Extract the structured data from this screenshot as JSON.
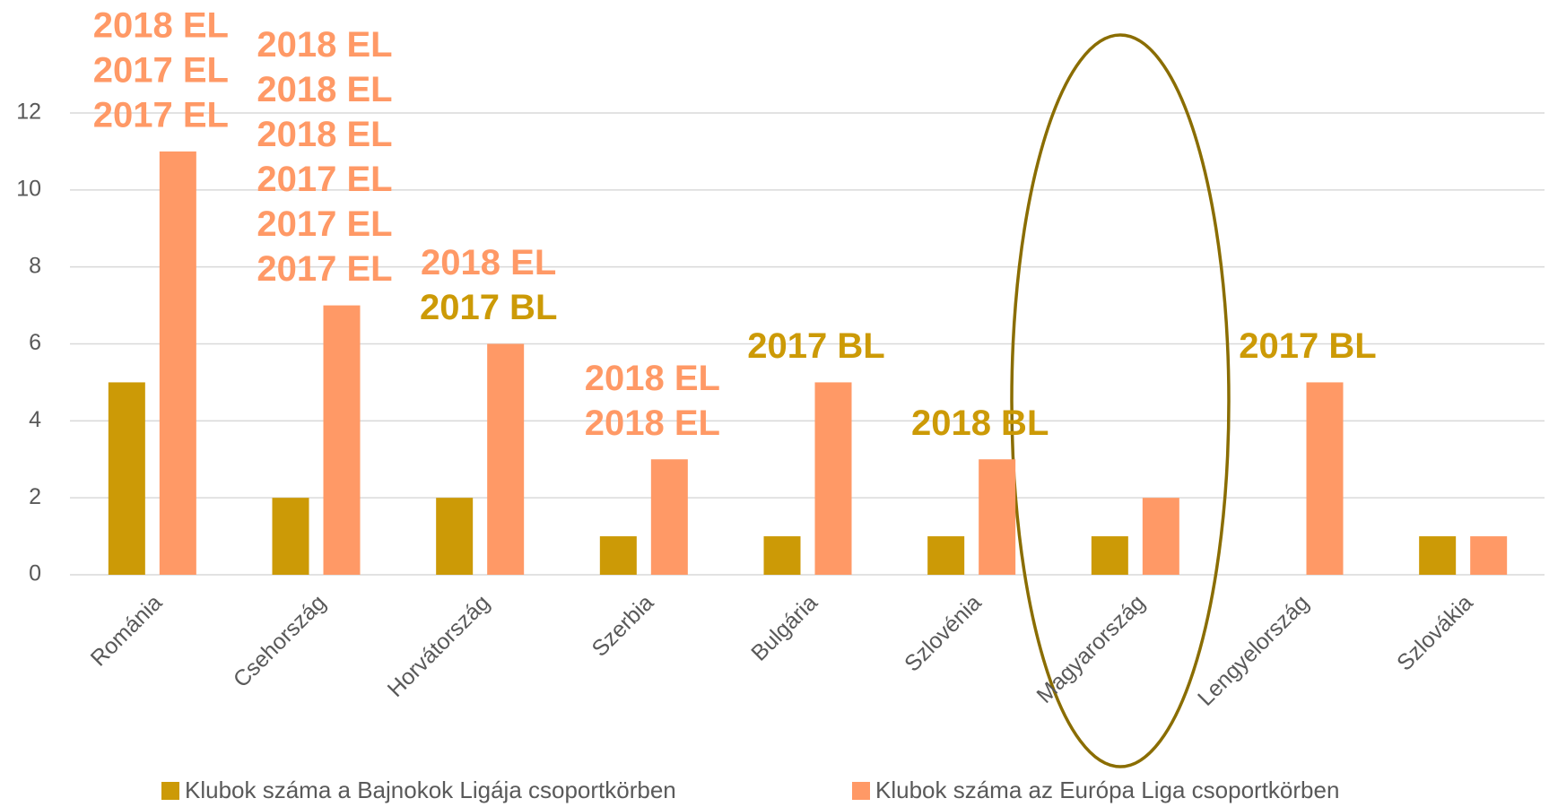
{
  "chart_data": {
    "type": "bar",
    "categories": [
      "Románia",
      "Csehország",
      "Horvátország",
      "Szerbia",
      "Bulgária",
      "Szlovénia",
      "Magyarország",
      "Lengyelország",
      "Szlovákia"
    ],
    "series": [
      {
        "name": "Klubok száma a Bajnokok Ligája csoportkörben",
        "color": "#cc9a06",
        "values": [
          5,
          2,
          2,
          1,
          1,
          1,
          1,
          0,
          1
        ]
      },
      {
        "name": "Klubok száma az Európa Liga csoportkörben",
        "color": "#ff9966",
        "values": [
          11,
          7,
          6,
          3,
          5,
          3,
          2,
          5,
          1
        ]
      }
    ],
    "annotations": [
      [
        {
          "text": "2017 EL",
          "color": "#ff9966"
        },
        {
          "text": "2017 EL",
          "color": "#ff9966"
        },
        {
          "text": "2018 EL",
          "color": "#ff9966"
        }
      ],
      [
        {
          "text": "2017 EL",
          "color": "#ff9966"
        },
        {
          "text": "2017 EL",
          "color": "#ff9966"
        },
        {
          "text": "2017 EL",
          "color": "#ff9966"
        },
        {
          "text": "2018 EL",
          "color": "#ff9966"
        },
        {
          "text": "2018 EL",
          "color": "#ff9966"
        },
        {
          "text": "2018 EL",
          "color": "#ff9966"
        }
      ],
      [
        {
          "text": "2017 BL",
          "color": "#cc9a06"
        },
        {
          "text": "2018 EL",
          "color": "#ff9966"
        }
      ],
      [
        {
          "text": "2018 EL",
          "color": "#ff9966"
        },
        {
          "text": "2018 EL",
          "color": "#ff9966"
        }
      ],
      [
        {
          "text": "2017 BL",
          "color": "#cc9a06"
        }
      ],
      [
        {
          "text": "2018 BL",
          "color": "#cc9a06"
        }
      ],
      [],
      [
        {
          "text": "2017 BL",
          "color": "#cc9a06"
        }
      ],
      []
    ],
    "ylim": [
      0,
      12
    ],
    "yticks": [
      0,
      2,
      4,
      6,
      8,
      10,
      12
    ],
    "grid": true,
    "legend": "bottom"
  }
}
